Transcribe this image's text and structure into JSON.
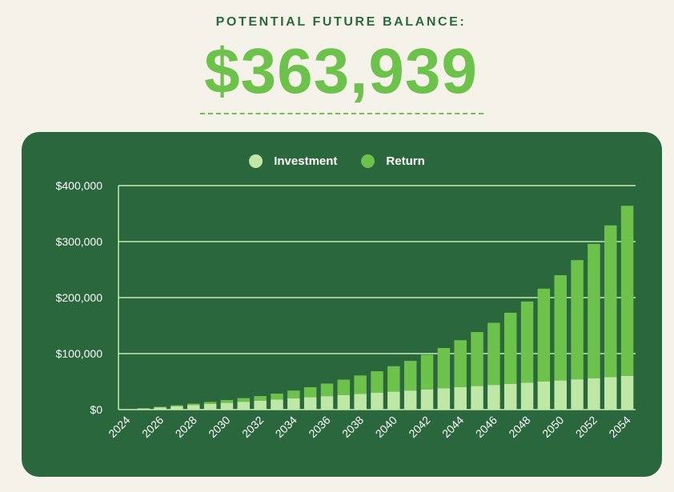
{
  "header": {
    "label": "POTENTIAL FUTURE BALANCE:",
    "value": "$363,939"
  },
  "colors": {
    "background": "#f5f2ea",
    "card": "#2b673c",
    "investment": "#bfe8a6",
    "return": "#6cc24a",
    "label_green": "#2b6a3c",
    "gridline": "#c8ecb0"
  },
  "chart_data": {
    "type": "bar",
    "stacked": true,
    "legend_position": "top-center",
    "grid": true,
    "ylim": [
      0,
      400000
    ],
    "y_ticks": [
      {
        "value": 0,
        "label": "$0"
      },
      {
        "value": 100000,
        "label": "$100,000"
      },
      {
        "value": 200000,
        "label": "$200,000"
      },
      {
        "value": 300000,
        "label": "$300,000"
      },
      {
        "value": 400000,
        "label": "$400,000"
      }
    ],
    "categories": [
      "2024",
      "2025",
      "2026",
      "2027",
      "2028",
      "2029",
      "2030",
      "2031",
      "2032",
      "2033",
      "2034",
      "2035",
      "2036",
      "2037",
      "2038",
      "2039",
      "2040",
      "2041",
      "2042",
      "2043",
      "2044",
      "2045",
      "2046",
      "2047",
      "2048",
      "2049",
      "2050",
      "2051",
      "2052",
      "2053",
      "2054"
    ],
    "x_tick_labels": [
      "2024",
      "2026",
      "2028",
      "2030",
      "2032",
      "2034",
      "2036",
      "2038",
      "2040",
      "2042",
      "2044",
      "2046",
      "2048",
      "2050",
      "2052",
      "2054"
    ],
    "series": [
      {
        "name": "Investment",
        "values": [
          0,
          2000,
          4000,
          6000,
          8000,
          10000,
          12000,
          14000,
          16000,
          18000,
          20000,
          22000,
          24000,
          26000,
          28000,
          30000,
          32000,
          34000,
          36000,
          38000,
          40000,
          42000,
          44000,
          46000,
          48000,
          50000,
          52000,
          54000,
          56000,
          58000,
          60000
        ]
      },
      {
        "name": "Return",
        "values": [
          0,
          300,
          900,
          1700,
          2600,
          3700,
          5000,
          6500,
          8200,
          10500,
          14000,
          18000,
          22500,
          27500,
          33000,
          38500,
          45500,
          53000,
          62000,
          72000,
          84000,
          96500,
          111000,
          127000,
          145000,
          166000,
          188000,
          213000,
          240000,
          271000,
          304000
        ]
      }
    ]
  }
}
